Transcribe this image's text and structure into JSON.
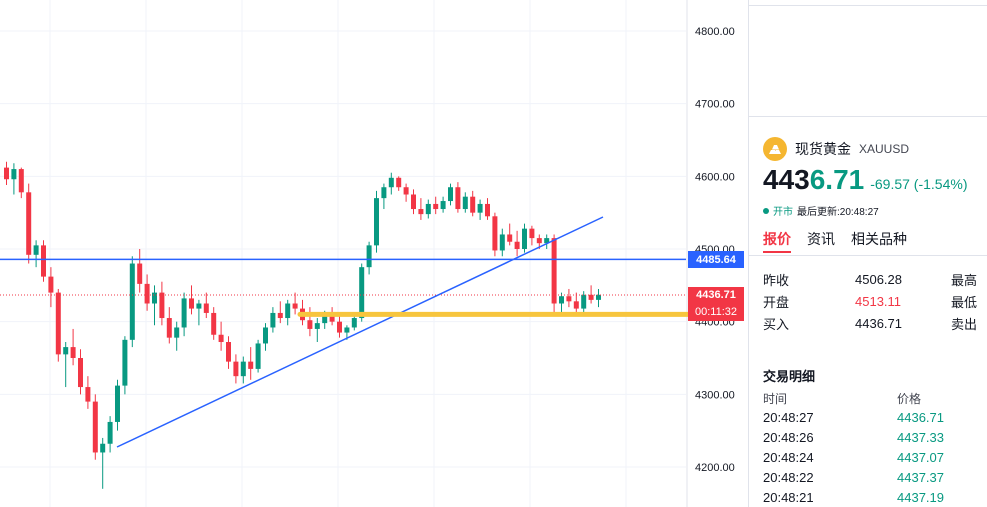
{
  "chart": {
    "y_axis_ticks": [
      "4800.00",
      "4700.00",
      "4600.00",
      "4500.00",
      "4400.00",
      "4300.00",
      "4200.00"
    ],
    "y_axis_values": [
      4800,
      4700,
      4600,
      4500,
      4400,
      4300,
      4200
    ],
    "horizontal_line_value": 4485.64,
    "horizontal_line_label": "4485.64",
    "current_price_label": "4436.71",
    "countdown_label": "00:11:32",
    "last_price_value": 4436.71,
    "support_zone_value": 4410,
    "colors": {
      "up": "#089981",
      "down": "#f23645",
      "blue_line": "#2962ff",
      "yellow_zone": "#f7c53d"
    },
    "candles": [
      [
        4612,
        4620,
        4588,
        4596
      ],
      [
        4596,
        4618,
        4575,
        4610
      ],
      [
        4610,
        4612,
        4570,
        4578
      ],
      [
        4578,
        4590,
        4480,
        4492
      ],
      [
        4492,
        4512,
        4475,
        4505
      ],
      [
        4505,
        4512,
        4455,
        4462
      ],
      [
        4462,
        4475,
        4420,
        4440
      ],
      [
        4440,
        4445,
        4345,
        4355
      ],
      [
        4355,
        4372,
        4310,
        4365
      ],
      [
        4365,
        4390,
        4340,
        4350
      ],
      [
        4350,
        4362,
        4300,
        4310
      ],
      [
        4310,
        4325,
        4280,
        4290
      ],
      [
        4290,
        4300,
        4210,
        4220
      ],
      [
        4220,
        4240,
        4170,
        4232
      ],
      [
        4232,
        4270,
        4220,
        4262
      ],
      [
        4262,
        4320,
        4250,
        4312
      ],
      [
        4312,
        4380,
        4300,
        4375
      ],
      [
        4375,
        4490,
        4365,
        4480
      ],
      [
        4480,
        4500,
        4440,
        4452
      ],
      [
        4452,
        4465,
        4415,
        4425
      ],
      [
        4425,
        4450,
        4395,
        4440
      ],
      [
        4440,
        4455,
        4395,
        4405
      ],
      [
        4405,
        4420,
        4370,
        4378
      ],
      [
        4378,
        4400,
        4360,
        4392
      ],
      [
        4392,
        4440,
        4380,
        4432
      ],
      [
        4432,
        4450,
        4410,
        4418
      ],
      [
        4418,
        4430,
        4395,
        4425
      ],
      [
        4425,
        4440,
        4405,
        4412
      ],
      [
        4412,
        4420,
        4375,
        4382
      ],
      [
        4382,
        4400,
        4360,
        4372
      ],
      [
        4372,
        4380,
        4335,
        4345
      ],
      [
        4345,
        4355,
        4315,
        4325
      ],
      [
        4325,
        4352,
        4315,
        4345
      ],
      [
        4345,
        4365,
        4320,
        4335
      ],
      [
        4335,
        4375,
        4330,
        4370
      ],
      [
        4370,
        4398,
        4360,
        4392
      ],
      [
        4392,
        4420,
        4385,
        4412
      ],
      [
        4412,
        4428,
        4398,
        4405
      ],
      [
        4405,
        4430,
        4395,
        4425
      ],
      [
        4425,
        4440,
        4410,
        4418
      ],
      [
        4418,
        4430,
        4395,
        4402
      ],
      [
        4402,
        4420,
        4380,
        4390
      ],
      [
        4390,
        4405,
        4372,
        4398
      ],
      [
        4398,
        4415,
        4390,
        4410
      ],
      [
        4410,
        4420,
        4395,
        4400
      ],
      [
        4400,
        4410,
        4378,
        4385
      ],
      [
        4385,
        4395,
        4375,
        4392
      ],
      [
        4392,
        4410,
        4388,
        4405
      ],
      [
        4405,
        4480,
        4400,
        4475
      ],
      [
        4475,
        4510,
        4465,
        4505
      ],
      [
        4505,
        4580,
        4495,
        4570
      ],
      [
        4570,
        4590,
        4555,
        4585
      ],
      [
        4585,
        4605,
        4575,
        4598
      ],
      [
        4598,
        4600,
        4580,
        4585
      ],
      [
        4585,
        4590,
        4565,
        4575
      ],
      [
        4575,
        4582,
        4548,
        4555
      ],
      [
        4555,
        4570,
        4540,
        4548
      ],
      [
        4548,
        4568,
        4542,
        4562
      ],
      [
        4562,
        4572,
        4548,
        4555
      ],
      [
        4555,
        4572,
        4550,
        4566
      ],
      [
        4566,
        4590,
        4560,
        4585
      ],
      [
        4585,
        4592,
        4550,
        4555
      ],
      [
        4555,
        4578,
        4550,
        4572
      ],
      [
        4572,
        4580,
        4545,
        4550
      ],
      [
        4550,
        4568,
        4540,
        4562
      ],
      [
        4562,
        4570,
        4540,
        4545
      ],
      [
        4545,
        4550,
        4490,
        4498
      ],
      [
        4498,
        4528,
        4490,
        4520
      ],
      [
        4520,
        4535,
        4505,
        4510
      ],
      [
        4510,
        4525,
        4490,
        4500
      ],
      [
        4500,
        4535,
        4495,
        4528
      ],
      [
        4528,
        4532,
        4505,
        4515
      ],
      [
        4515,
        4520,
        4500,
        4508
      ],
      [
        4508,
        4520,
        4500,
        4515
      ],
      [
        4515,
        4520,
        4410,
        4425
      ],
      [
        4425,
        4440,
        4410,
        4435
      ],
      [
        4435,
        4445,
        4420,
        4428
      ],
      [
        4428,
        4440,
        4412,
        4418
      ],
      [
        4418,
        4442,
        4412,
        4437
      ],
      [
        4437,
        4450,
        4425,
        4430
      ],
      [
        4430,
        4445,
        4420,
        4437
      ]
    ]
  },
  "symbol": {
    "name": "现货黄金",
    "code": "XAUUSD",
    "price_head": "443",
    "price_tail": "6.71",
    "change": "-69.57 (-1.54%)",
    "status_open": "开市",
    "status_text": "最后更新:20:48:27"
  },
  "tabs": [
    "报价",
    "资讯",
    "相关品种"
  ],
  "quote": {
    "rows": [
      {
        "label": "昨收",
        "value": "4506.28",
        "red": false,
        "label2": "最高"
      },
      {
        "label": "开盘",
        "value": "4513.11",
        "red": true,
        "label2": "最低"
      },
      {
        "label": "买入",
        "value": "4436.71",
        "red": false,
        "label2": "卖出"
      }
    ]
  },
  "trades": {
    "title": "交易明细",
    "col_time": "时间",
    "col_price": "价格",
    "rows": [
      {
        "time": "20:48:27",
        "price": "4436.71"
      },
      {
        "time": "20:48:26",
        "price": "4437.33"
      },
      {
        "time": "20:48:24",
        "price": "4437.07"
      },
      {
        "time": "20:48:22",
        "price": "4437.37"
      },
      {
        "time": "20:48:21",
        "price": "4437.19"
      }
    ]
  }
}
